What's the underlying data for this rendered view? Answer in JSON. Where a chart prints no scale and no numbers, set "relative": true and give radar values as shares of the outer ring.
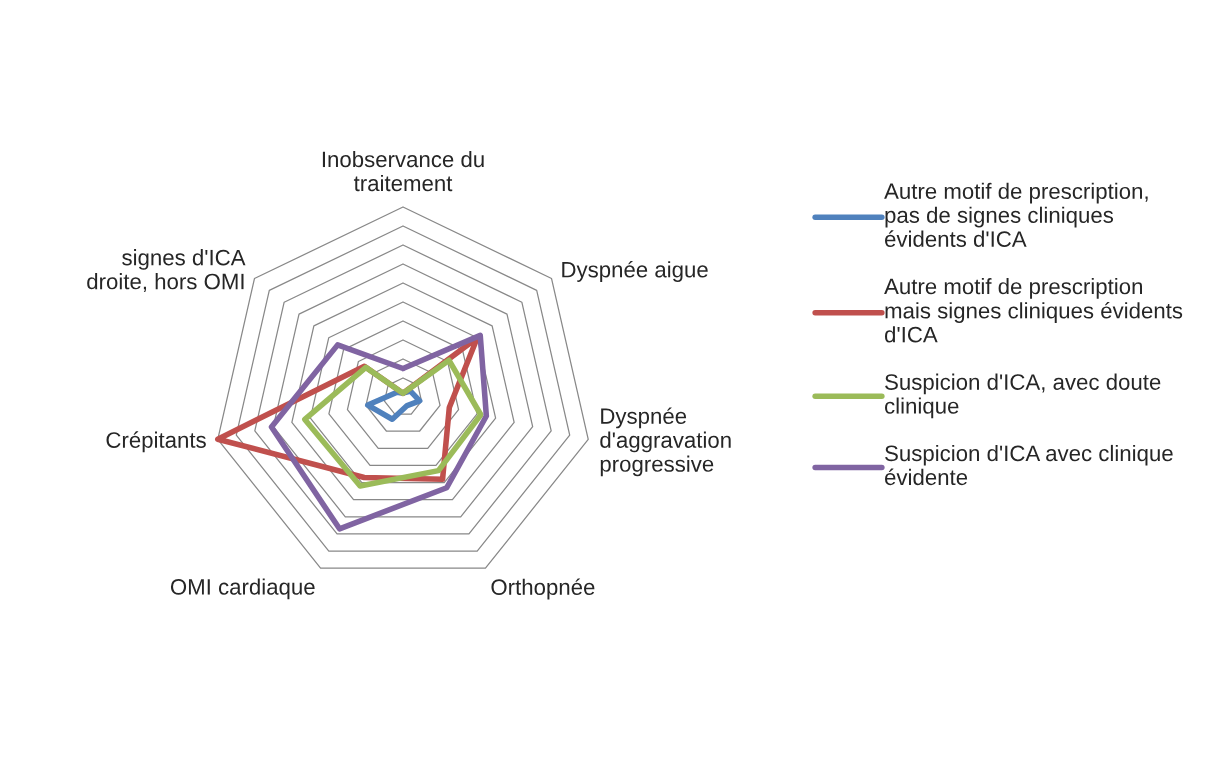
{
  "chart_data": {
    "type": "radar",
    "relative": true,
    "grid": true,
    "legend": "right",
    "marker": "none",
    "line_style": "solid",
    "categories": [
      "Inobservance du\ntraitement",
      "Dyspnée aigue",
      "Dyspnée\nd'aggravation\nprogressive",
      "Orthopnée",
      "OMI cardiaque",
      "Crépitants",
      "signes d'ICA\ndroite, hors OMI"
    ],
    "series": [
      {
        "name": "Autre motif de prescription,\npas de signes cliniques\névidents d'ICA",
        "color": "#4f81bd",
        "values": [
          0.02,
          0.05,
          0.09,
          0.05,
          0.13,
          0.19,
          0.04
        ]
      },
      {
        "name": "Autre motif de prescription\nmais signes cliniques évidents\nd'ICA",
        "color": "#c0504d",
        "values": [
          0.02,
          0.5,
          0.25,
          0.48,
          0.47,
          1.0,
          0.26
        ]
      },
      {
        "name": "Suspicion d'ICA, avec doute\nclinique",
        "color": "#9bbb59",
        "values": [
          0.02,
          0.31,
          0.42,
          0.43,
          0.52,
          0.53,
          0.25
        ]
      },
      {
        "name": "Suspicion d'ICA avec clinique\névidente",
        "color": "#8064a2",
        "values": [
          0.15,
          0.52,
          0.45,
          0.53,
          0.77,
          0.71,
          0.44
        ]
      }
    ]
  }
}
